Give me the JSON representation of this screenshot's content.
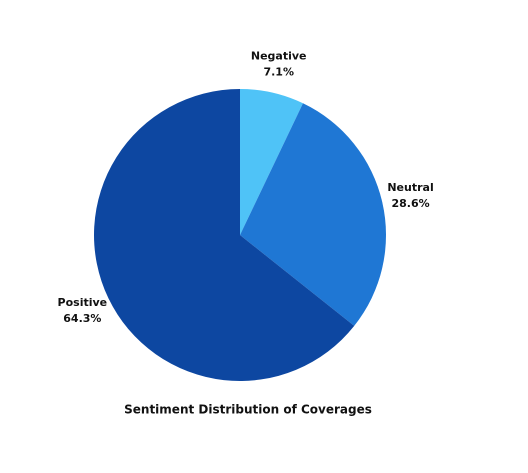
{
  "chart_data": {
    "type": "pie",
    "title": "Sentiment Distribution of Coverages",
    "categories": [
      "Negative",
      "Neutral",
      "Positive"
    ],
    "values": [
      7.1,
      28.6,
      64.3
    ],
    "value_labels": [
      "7.1%",
      "28.6%",
      "64.3%"
    ],
    "colors": [
      "#4fc3f7",
      "#1f77d4",
      "#0d47a1"
    ]
  }
}
